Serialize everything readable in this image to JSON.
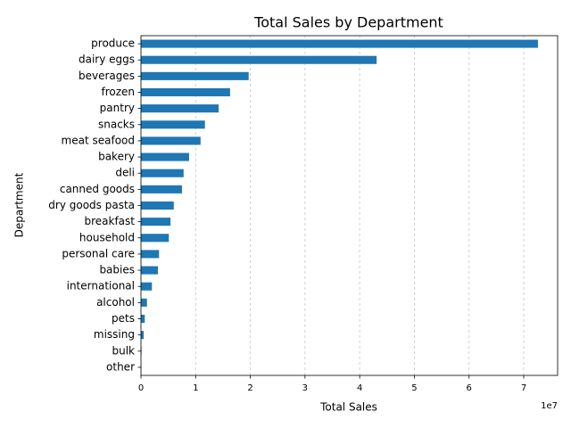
{
  "chart_data": {
    "type": "barh",
    "title": "Total Sales by Department",
    "xlabel": "Total Sales",
    "ylabel": "Department",
    "x_offset_label": "1e7",
    "categories": [
      "produce",
      "dairy eggs",
      "beverages",
      "frozen",
      "pantry",
      "snacks",
      "meat seafood",
      "bakery",
      "deli",
      "canned goods",
      "dry goods pasta",
      "breakfast",
      "household",
      "personal care",
      "babies",
      "international",
      "alcohol",
      "pets",
      "missing",
      "bulk",
      "other"
    ],
    "values": [
      72600000,
      43100000,
      19700000,
      16300000,
      14200000,
      11700000,
      10900000,
      8800000,
      7800000,
      7500000,
      6000000,
      5400000,
      5100000,
      3300000,
      3100000,
      2000000,
      1100000,
      700000,
      500000,
      100000,
      50000
    ],
    "color": "#1f77b4",
    "xlim": [
      0,
      76200000
    ],
    "xticks": [
      0,
      {
        "value": 10000000,
        "label": "1"
      },
      {
        "value": 20000000,
        "label": "2"
      },
      {
        "value": 30000000,
        "label": "3"
      },
      {
        "value": 40000000,
        "label": "4"
      },
      {
        "value": 50000000,
        "label": "5"
      },
      {
        "value": 60000000,
        "label": "6"
      },
      {
        "value": 70000000,
        "label": "7"
      }
    ],
    "grid": true
  }
}
